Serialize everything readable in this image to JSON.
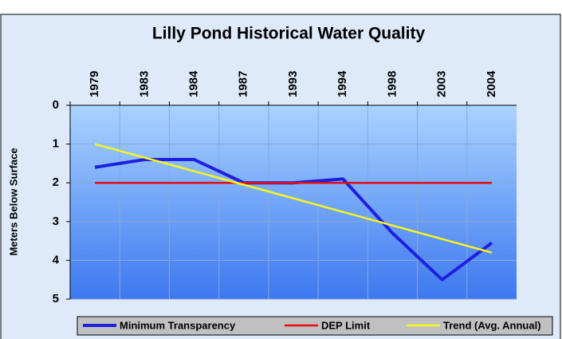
{
  "chart_data": {
    "type": "line",
    "title": "Lilly Pond Historical Water Quality",
    "y_label": "Meters Below Surface",
    "categories": [
      "1979",
      "1983",
      "1984",
      "1987",
      "1993",
      "1994",
      "1998",
      "2003",
      "2004"
    ],
    "series": [
      {
        "name": "Minimum Transparency",
        "color": "#1f1fe0",
        "width": 4,
        "values": [
          1.6,
          1.4,
          1.4,
          2.0,
          2.0,
          1.9,
          3.3,
          4.5,
          3.55
        ]
      },
      {
        "name": "DEP Limit",
        "color": "#e01010",
        "width": 2.5,
        "values": [
          2,
          2,
          2,
          2,
          2,
          2,
          2,
          2,
          2
        ]
      },
      {
        "name": "Trend (Avg. Annual)",
        "color": "#f5f520",
        "width": 2.5,
        "values": [
          1.0,
          1.35,
          1.7,
          2.05,
          2.4,
          2.75,
          3.1,
          3.45,
          3.8
        ]
      }
    ],
    "ylim": [
      0,
      5
    ],
    "yticks": [
      0,
      1,
      2,
      3,
      4,
      5
    ],
    "y_inverted": true,
    "x_axis_position": "top",
    "grid": true
  }
}
